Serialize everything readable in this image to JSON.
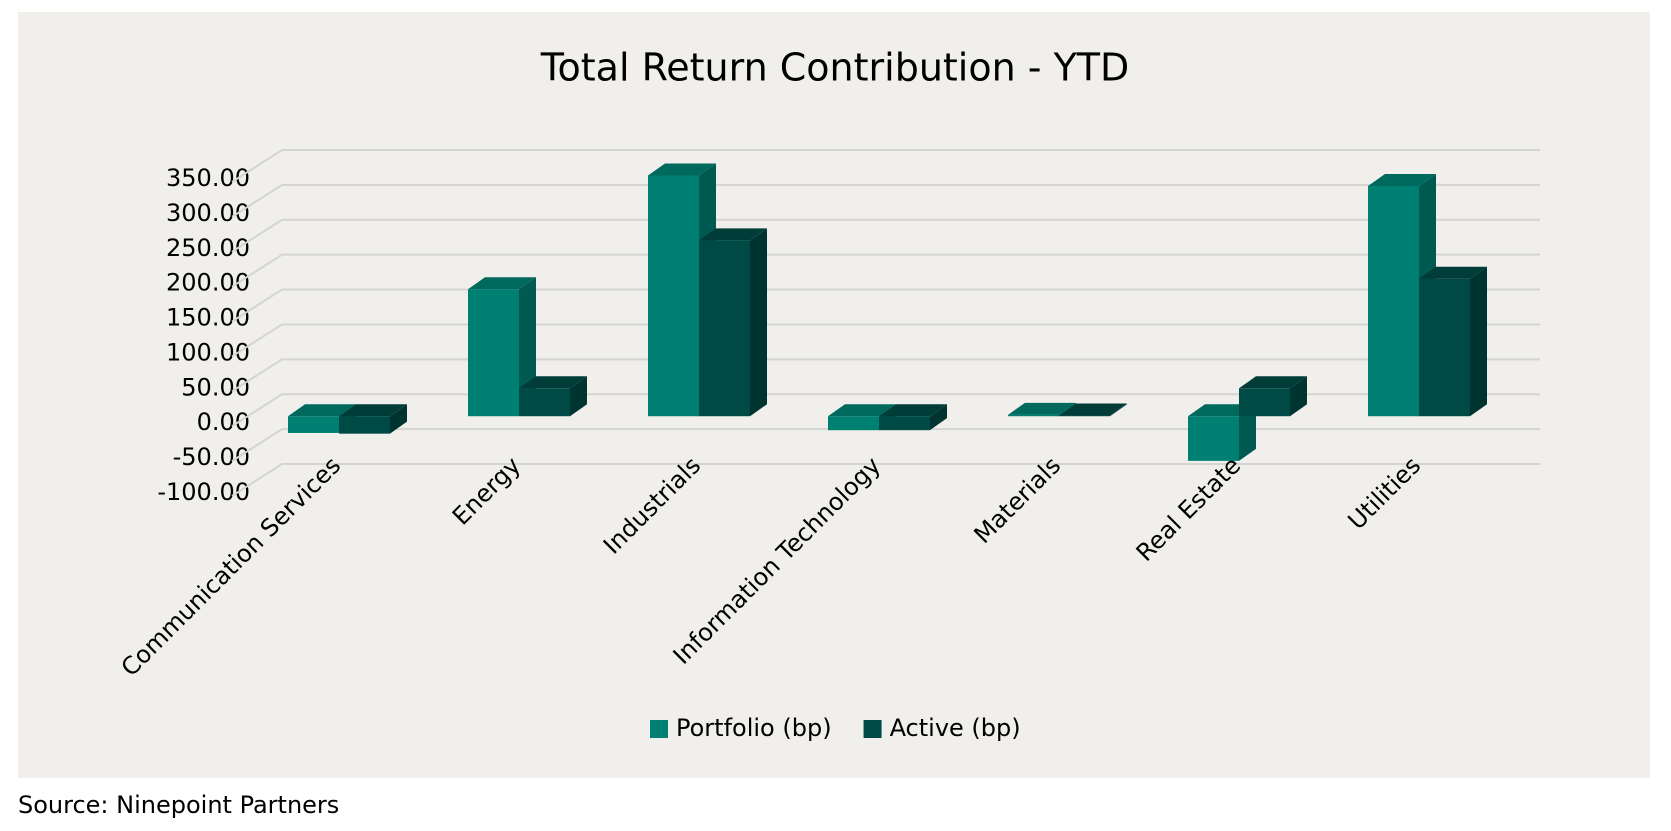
{
  "chart_data": {
    "type": "bar3d",
    "title": "Total Return Contribution - YTD",
    "categories": [
      "Communication Services",
      "Energy",
      "Industrials",
      "Information Technology",
      "Materials",
      "Real Estate",
      "Utilities"
    ],
    "series": [
      {
        "name": "Portfolio (bp)",
        "color": "#008073",
        "values": [
          -24,
          182,
          345,
          -20,
          2,
          -64,
          330
        ]
      },
      {
        "name": "Active (bp)",
        "color": "#004a45",
        "values": [
          -25,
          40,
          252,
          -20,
          1,
          40,
          197
        ]
      }
    ],
    "ylim": [
      -100,
      350
    ],
    "yticks": [
      {
        "value": -100,
        "label": "-100.00"
      },
      {
        "value": -50,
        "label": "-50.00"
      },
      {
        "value": 0,
        "label": "0.00"
      },
      {
        "value": 50,
        "label": "50.00"
      },
      {
        "value": 100,
        "label": "100.00"
      },
      {
        "value": 150,
        "label": "150.00"
      },
      {
        "value": 200,
        "label": "200.00"
      },
      {
        "value": 250,
        "label": "250.00"
      },
      {
        "value": 300,
        "label": "300.00"
      },
      {
        "value": 350,
        "label": "350.00"
      }
    ],
    "grid": true,
    "legend": "bottom",
    "source": "Source: Ninepoint Partners"
  }
}
